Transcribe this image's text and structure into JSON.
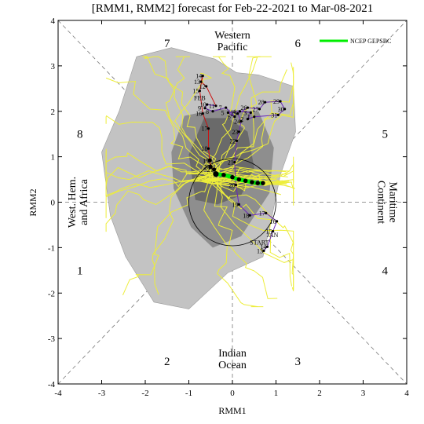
{
  "chart_data": {
    "type": "scatter",
    "title": "[RMM1, RMM2] forecast for Feb-22-2021 to Mar-08-2021",
    "xlabel": "RMM1",
    "ylabel": "RMM2",
    "xlim": [
      -4,
      4
    ],
    "ylim": [
      -4,
      4
    ],
    "xticks": [
      -4,
      -3,
      -2,
      -1,
      0,
      1,
      2,
      3,
      4
    ],
    "yticks": [
      -4,
      -3,
      -2,
      -1,
      0,
      1,
      2,
      3,
      4
    ],
    "unit_circle_radius": 1,
    "phase_labels": [
      {
        "text": "1",
        "x": -3.5,
        "y": -1.5
      },
      {
        "text": "2",
        "x": -1.5,
        "y": -3.5
      },
      {
        "text": "3",
        "x": 1.5,
        "y": -3.5
      },
      {
        "text": "4",
        "x": 3.5,
        "y": -1.5
      },
      {
        "text": "5",
        "x": 3.5,
        "y": 1.5
      },
      {
        "text": "6",
        "x": 1.5,
        "y": 3.5
      },
      {
        "text": "7",
        "x": -1.5,
        "y": 3.5
      },
      {
        "text": "8",
        "x": -3.5,
        "y": 1.5
      }
    ],
    "region_labels": [
      {
        "name": "western-pacific",
        "lines": [
          "Western",
          "Pacific"
        ],
        "x": 0,
        "y": 3.5,
        "rotate": 0
      },
      {
        "name": "indian-ocean",
        "lines": [
          "Indian",
          "Ocean"
        ],
        "x": 0,
        "y": -3.5,
        "rotate": 0
      },
      {
        "name": "west-hem-africa",
        "lines": [
          "West. Hem.",
          "and Africa"
        ],
        "x": -3.5,
        "y": 0,
        "rotate": -90
      },
      {
        "name": "maritime-continent",
        "lines": [
          "Maritime",
          "Continent"
        ],
        "x": 3.5,
        "y": 0,
        "rotate": 90
      }
    ],
    "legend": {
      "label": "NCEP GEPSBC",
      "color": "#00ee00",
      "position": "top-right"
    },
    "observed": {
      "month_labels": [
        {
          "text": "JAN",
          "x": 0.92,
          "y": -0.77,
          "color": "#6a28b8"
        },
        {
          "text": "START",
          "x": 0.62,
          "y": -0.93,
          "color": "#6a28b8"
        },
        {
          "text": "FEB",
          "x": -0.75,
          "y": 2.25,
          "color": "#cc1111"
        }
      ],
      "jan_points": [
        {
          "day": "13",
          "x": 0.72,
          "y": -1.07
        },
        {
          "day": "14",
          "x": 0.8,
          "y": -0.98
        },
        {
          "day": "15",
          "x": 0.93,
          "y": -0.64
        },
        {
          "day": "16",
          "x": 1.02,
          "y": -0.42
        },
        {
          "day": "17",
          "x": 0.77,
          "y": -0.24
        },
        {
          "day": "18",
          "x": 0.4,
          "y": -0.29
        },
        {
          "day": "19",
          "x": 0.15,
          "y": -0.05
        },
        {
          "day": "20",
          "x": 0.08,
          "y": 0.38
        },
        {
          "day": "21",
          "x": 0.05,
          "y": 0.88
        },
        {
          "day": "22",
          "x": 0.1,
          "y": 1.35
        },
        {
          "day": "23",
          "x": 0.15,
          "y": 1.55
        },
        {
          "day": "24",
          "x": 0.2,
          "y": 1.78
        },
        {
          "day": "25",
          "x": 0.12,
          "y": 1.95
        },
        {
          "day": "26",
          "x": 0.35,
          "y": 2.08
        },
        {
          "day": "27",
          "x": 0.62,
          "y": 2.05
        },
        {
          "day": "28",
          "x": 0.75,
          "y": 2.2
        },
        {
          "day": "29",
          "x": 1.1,
          "y": 2.22
        },
        {
          "day": "30",
          "x": 1.2,
          "y": 2.05
        },
        {
          "day": "31",
          "x": 1.05,
          "y": 1.92
        }
      ],
      "feb_points": [
        {
          "day": "1",
          "x": 0.5,
          "y": 1.88
        },
        {
          "day": "2",
          "x": 0.35,
          "y": 1.83
        },
        {
          "day": "3",
          "x": 0.42,
          "y": 1.97
        },
        {
          "day": "4",
          "x": 0.17,
          "y": 2.0
        },
        {
          "day": "5",
          "x": -0.1,
          "y": 1.97
        },
        {
          "day": "6",
          "x": 0.05,
          "y": 1.88
        },
        {
          "day": "7",
          "x": -0.15,
          "y": 2.08
        },
        {
          "day": "8",
          "x": -0.45,
          "y": 2.0
        },
        {
          "day": "9",
          "x": -0.63,
          "y": 2.07
        },
        {
          "day": "10",
          "x": -0.58,
          "y": 2.15
        },
        {
          "day": "11",
          "x": -0.38,
          "y": 2.12
        },
        {
          "day": "12",
          "x": -0.6,
          "y": 2.55
        },
        {
          "day": "13",
          "x": -0.72,
          "y": 2.65
        },
        {
          "day": "14",
          "x": -0.68,
          "y": 2.78
        },
        {
          "day": "15",
          "x": -0.75,
          "y": 2.45
        },
        {
          "day": "16",
          "x": -0.68,
          "y": 1.95
        },
        {
          "day": "17",
          "x": -0.55,
          "y": 1.62
        },
        {
          "day": "18",
          "x": -0.55,
          "y": 1.18
        },
        {
          "day": "19",
          "x": -0.52,
          "y": 0.92
        },
        {
          "day": "20",
          "x": -0.5,
          "y": 0.78
        },
        {
          "day": "21",
          "x": -0.42,
          "y": 0.72
        }
      ]
    },
    "ensemble_mean": [
      {
        "x": -0.38,
        "y": 0.62
      },
      {
        "x": -0.2,
        "y": 0.6
      },
      {
        "x": 0.0,
        "y": 0.55
      },
      {
        "x": 0.15,
        "y": 0.5
      },
      {
        "x": 0.3,
        "y": 0.47
      },
      {
        "x": 0.45,
        "y": 0.44
      },
      {
        "x": 0.58,
        "y": 0.42
      },
      {
        "x": 0.7,
        "y": 0.42
      }
    ],
    "spread_outer": [
      [
        -3.0,
        1.1
      ],
      [
        -2.6,
        2.0
      ],
      [
        -2.2,
        3.2
      ],
      [
        -1.4,
        3.4
      ],
      [
        -0.4,
        3.15
      ],
      [
        0.1,
        2.85
      ],
      [
        0.6,
        2.8
      ],
      [
        1.4,
        2.55
      ],
      [
        1.45,
        1.55
      ],
      [
        1.1,
        0.6
      ],
      [
        0.9,
        -0.35
      ],
      [
        0.7,
        -1.2
      ],
      [
        -0.1,
        -1.55
      ],
      [
        -1.0,
        -2.35
      ],
      [
        -1.8,
        -2.2
      ],
      [
        -2.45,
        -1.2
      ],
      [
        -2.8,
        -0.3
      ]
    ],
    "spread_middle": [
      [
        -1.4,
        1.1
      ],
      [
        -1.1,
        1.9
      ],
      [
        -0.35,
        2.05
      ],
      [
        0.6,
        2.0
      ],
      [
        0.95,
        1.2
      ],
      [
        0.85,
        0.2
      ],
      [
        0.2,
        -0.75
      ],
      [
        -0.45,
        -1.0
      ],
      [
        -0.95,
        -0.55
      ],
      [
        -1.35,
        0.3
      ]
    ],
    "spread_inner": [
      [
        -1.0,
        1.05
      ],
      [
        -0.65,
        1.85
      ],
      [
        -0.1,
        1.85
      ],
      [
        0.35,
        1.55
      ],
      [
        0.5,
        0.75
      ],
      [
        0.2,
        0.15
      ],
      [
        -0.35,
        -0.05
      ],
      [
        -0.85,
        0.05
      ]
    ]
  }
}
